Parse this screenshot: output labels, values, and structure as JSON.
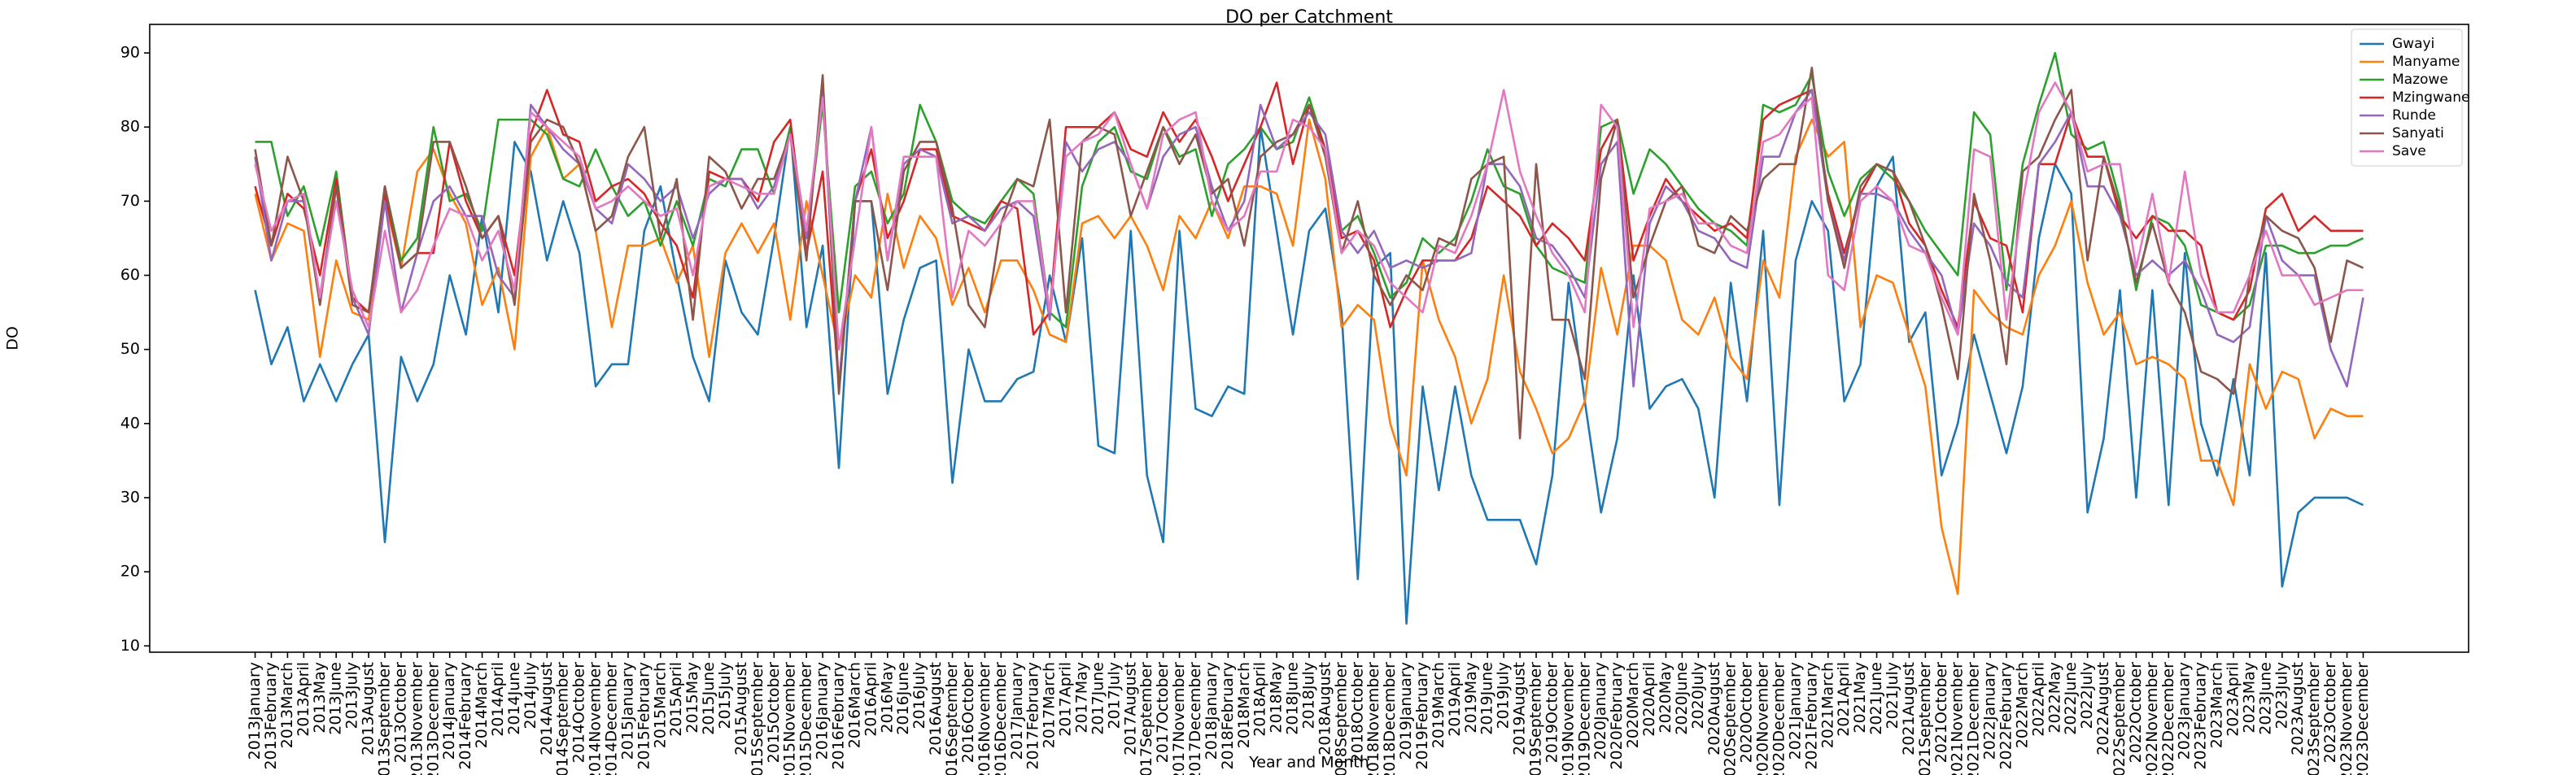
{
  "chart_data": {
    "type": "line",
    "title": "DO per Catchment",
    "x_label": "Year and Month",
    "y_label": "DO",
    "categories": [
      "2013January",
      "2013February",
      "2013March",
      "2013April",
      "2013May",
      "2013June",
      "2013July",
      "2013August",
      "2013September",
      "2013October",
      "2013November",
      "2013December",
      "2014January",
      "2014February",
      "2014March",
      "2014April",
      "2014June",
      "2014July",
      "2014August",
      "2014September",
      "2014October",
      "2014November",
      "2014December",
      "2015January",
      "2015February",
      "2015March",
      "2015April",
      "2015May",
      "2015June",
      "2015July",
      "2015August",
      "2015September",
      "2015October",
      "2015November",
      "2015December",
      "2016January",
      "2016February",
      "2016March",
      "2016April",
      "2016May",
      "2016June",
      "2016July",
      "2016August",
      "2016September",
      "2016October",
      "2016November",
      "2016December",
      "2017January",
      "2017February",
      "2017March",
      "2017April",
      "2017May",
      "2017June",
      "2017July",
      "2017August",
      "2017September",
      "2017October",
      "2017November",
      "2017December",
      "2018January",
      "2018February",
      "2018March",
      "2018April",
      "2018May",
      "2018June",
      "2018July",
      "2018August",
      "2018September",
      "2018October",
      "2018November",
      "2018December",
      "2019January",
      "2019February",
      "2019March",
      "2019April",
      "2019May",
      "2019June",
      "2019July",
      "2019August",
      "2019September",
      "2019October",
      "2019November",
      "2019December",
      "2020January",
      "2020February",
      "2020March",
      "2020April",
      "2020May",
      "2020June",
      "2020July",
      "2020August",
      "2020September",
      "2020October",
      "2020November",
      "2020December",
      "2021January",
      "2021February",
      "2021March",
      "2021April",
      "2021May",
      "2021June",
      "2021July",
      "2021August",
      "2021September",
      "2021October",
      "2021November",
      "2021December",
      "2022January",
      "2022February",
      "2022March",
      "2022April",
      "2022May",
      "2022June",
      "2022July",
      "2022August",
      "2022September",
      "2022October",
      "2022November",
      "2022December",
      "2023January",
      "2023February",
      "2023March",
      "2023April",
      "2023May",
      "2023June",
      "2023July",
      "2023August",
      "2023September",
      "2023October",
      "2023November",
      "2023December"
    ],
    "series": [
      {
        "name": "Gwayi",
        "color": "#1f77b4",
        "values": [
          58,
          48,
          53,
          43,
          48,
          43,
          48,
          52,
          24,
          49,
          43,
          48,
          60,
          52,
          68,
          55,
          78,
          74,
          62,
          70,
          63,
          45,
          48,
          48,
          66,
          72,
          60,
          49,
          43,
          62,
          55,
          52,
          65,
          80,
          53,
          64,
          34,
          70,
          70,
          44,
          54,
          61,
          62,
          32,
          50,
          43,
          43,
          46,
          47,
          60,
          51,
          65,
          37,
          36,
          66,
          33,
          24,
          66,
          42,
          41,
          45,
          44,
          80,
          66,
          52,
          66,
          69,
          55,
          19,
          61,
          63,
          13,
          45,
          31,
          45,
          33,
          27,
          27,
          27,
          21,
          33,
          59,
          43,
          28,
          38,
          60,
          42,
          45,
          46,
          42,
          30,
          59,
          43,
          66,
          29,
          62,
          70,
          66,
          43,
          48,
          72,
          76,
          51,
          55,
          33,
          40,
          52,
          44,
          36,
          45,
          65,
          75,
          71,
          28,
          38,
          58,
          30,
          58,
          29,
          63,
          40,
          33,
          46,
          33,
          63,
          18,
          28,
          30,
          30,
          30,
          29
        ]
      },
      {
        "name": "Manyame",
        "color": "#ff7f0e",
        "values": [
          71,
          62,
          67,
          66,
          49,
          62,
          55,
          54,
          70,
          61,
          74,
          77,
          71,
          67,
          56,
          61,
          50,
          76,
          80,
          73,
          75,
          66,
          53,
          64,
          64,
          65,
          59,
          64,
          49,
          63,
          67,
          63,
          67,
          54,
          70,
          60,
          50,
          60,
          57,
          71,
          61,
          68,
          65,
          56,
          61,
          55,
          62,
          62,
          58,
          52,
          51,
          67,
          68,
          65,
          68,
          64,
          58,
          68,
          65,
          70,
          65,
          72,
          72,
          71,
          64,
          81,
          73,
          53,
          56,
          54,
          40,
          33,
          62,
          54,
          49,
          40,
          46,
          60,
          47,
          42,
          36,
          38,
          43,
          61,
          52,
          64,
          64,
          62,
          54,
          52,
          57,
          49,
          46,
          62,
          57,
          76,
          81,
          76,
          78,
          53,
          60,
          59,
          52,
          45,
          26,
          17,
          58,
          55,
          53,
          52,
          60,
          64,
          70,
          59,
          52,
          55,
          48,
          49,
          48,
          46,
          35,
          35,
          29,
          48,
          42,
          47,
          46,
          38,
          42,
          41,
          41
        ]
      },
      {
        "name": "Mazowe",
        "color": "#2ca02c",
        "values": [
          78,
          78,
          68,
          72,
          64,
          74,
          57,
          55,
          72,
          62,
          65,
          80,
          70,
          71,
          66,
          81,
          81,
          81,
          79,
          73,
          72,
          77,
          72,
          68,
          70,
          64,
          70,
          64,
          73,
          72,
          77,
          77,
          71,
          80,
          65,
          83,
          55,
          72,
          74,
          67,
          71,
          83,
          78,
          70,
          68,
          67,
          70,
          73,
          71,
          55,
          53,
          72,
          78,
          80,
          74,
          73,
          80,
          76,
          77,
          68,
          75,
          77,
          80,
          77,
          78,
          84,
          77,
          66,
          68,
          63,
          57,
          59,
          65,
          63,
          65,
          70,
          77,
          72,
          71,
          64,
          61,
          60,
          59,
          80,
          81,
          71,
          77,
          75,
          72,
          69,
          67,
          66,
          64,
          83,
          82,
          83,
          87,
          74,
          68,
          73,
          75,
          73,
          70,
          66,
          63,
          60,
          82,
          79,
          58,
          75,
          83,
          90,
          79,
          77,
          78,
          70,
          58,
          68,
          67,
          64,
          56,
          55,
          54,
          56,
          64,
          64,
          63,
          63,
          64,
          64,
          65
        ]
      },
      {
        "name": "Mzingwane",
        "color": "#d62728",
        "values": [
          72,
          64,
          71,
          69,
          60,
          73,
          57,
          55,
          71,
          61,
          63,
          63,
          78,
          70,
          65,
          68,
          60,
          79,
          85,
          79,
          78,
          70,
          72,
          73,
          71,
          67,
          64,
          57,
          74,
          73,
          73,
          70,
          78,
          81,
          63,
          74,
          45,
          70,
          77,
          65,
          70,
          77,
          77,
          68,
          67,
          66,
          70,
          69,
          52,
          55,
          80,
          80,
          80,
          82,
          77,
          76,
          82,
          78,
          81,
          76,
          70,
          75,
          80,
          86,
          75,
          83,
          77,
          65,
          66,
          62,
          53,
          58,
          62,
          62,
          62,
          65,
          72,
          70,
          68,
          64,
          67,
          65,
          62,
          77,
          81,
          62,
          68,
          73,
          70,
          68,
          66,
          67,
          65,
          81,
          83,
          84,
          85,
          71,
          63,
          71,
          75,
          74,
          67,
          64,
          58,
          53,
          70,
          65,
          64,
          55,
          75,
          75,
          82,
          76,
          76,
          68,
          65,
          68,
          66,
          66,
          64,
          55,
          54,
          58,
          69,
          71,
          66,
          68,
          66,
          66,
          66
        ]
      },
      {
        "name": "Runde",
        "color": "#9467bd",
        "values": [
          76,
          62,
          70,
          70,
          57,
          72,
          57,
          52,
          70,
          55,
          63,
          70,
          72,
          68,
          68,
          60,
          57,
          83,
          80,
          77,
          75,
          69,
          67,
          75,
          73,
          70,
          72,
          65,
          71,
          73,
          73,
          69,
          72,
          79,
          65,
          85,
          45,
          70,
          80,
          62,
          75,
          77,
          76,
          67,
          68,
          66,
          69,
          70,
          68,
          54,
          78,
          74,
          77,
          78,
          75,
          69,
          76,
          79,
          80,
          72,
          66,
          70,
          83,
          77,
          79,
          82,
          79,
          66,
          63,
          66,
          61,
          62,
          61,
          62,
          62,
          63,
          75,
          75,
          72,
          65,
          64,
          61,
          57,
          75,
          78,
          45,
          67,
          72,
          70,
          66,
          65,
          62,
          61,
          76,
          76,
          82,
          85,
          70,
          62,
          71,
          71,
          70,
          66,
          63,
          60,
          52,
          67,
          64,
          59,
          57,
          75,
          78,
          82,
          72,
          72,
          68,
          60,
          62,
          60,
          62,
          58,
          52,
          51,
          53,
          68,
          62,
          60,
          60,
          50,
          45,
          57
        ]
      },
      {
        "name": "Sanyati",
        "color": "#8c564b",
        "values": [
          77,
          64,
          76,
          70,
          56,
          72,
          56,
          55,
          72,
          61,
          63,
          78,
          78,
          72,
          65,
          68,
          56,
          78,
          81,
          80,
          75,
          66,
          68,
          76,
          80,
          65,
          73,
          54,
          76,
          74,
          69,
          73,
          73,
          79,
          62,
          87,
          44,
          70,
          70,
          58,
          74,
          78,
          78,
          69,
          56,
          53,
          67,
          73,
          72,
          81,
          55,
          78,
          80,
          79,
          68,
          74,
          80,
          75,
          79,
          71,
          73,
          64,
          76,
          78,
          79,
          83,
          76,
          63,
          70,
          60,
          56,
          60,
          58,
          65,
          64,
          73,
          75,
          76,
          38,
          75,
          54,
          54,
          46,
          73,
          81,
          57,
          64,
          70,
          72,
          64,
          63,
          68,
          66,
          73,
          75,
          75,
          88,
          70,
          61,
          72,
          75,
          74,
          70,
          64,
          56,
          46,
          71,
          62,
          48,
          74,
          76,
          81,
          85,
          62,
          76,
          69,
          59,
          67,
          59,
          55,
          47,
          46,
          44,
          60,
          68,
          66,
          65,
          61,
          51,
          62,
          61
        ]
      },
      {
        "name": "Save",
        "color": "#e377c2",
        "values": [
          75,
          66,
          70,
          71,
          57,
          70,
          58,
          53,
          66,
          55,
          58,
          64,
          69,
          68,
          62,
          66,
          58,
          82,
          80,
          78,
          76,
          69,
          70,
          72,
          70,
          68,
          69,
          60,
          72,
          73,
          72,
          71,
          71,
          79,
          66,
          84,
          50,
          65,
          80,
          62,
          76,
          76,
          76,
          57,
          66,
          64,
          67,
          70,
          70,
          55,
          76,
          78,
          79,
          82,
          75,
          69,
          79,
          81,
          82,
          70,
          66,
          68,
          74,
          74,
          81,
          80,
          77,
          63,
          66,
          64,
          59,
          57,
          55,
          64,
          63,
          68,
          75,
          85,
          74,
          68,
          63,
          60,
          55,
          83,
          80,
          53,
          69,
          70,
          71,
          67,
          67,
          64,
          63,
          78,
          79,
          82,
          84,
          60,
          58,
          70,
          72,
          70,
          64,
          63,
          57,
          52,
          77,
          76,
          54,
          70,
          82,
          86,
          82,
          74,
          75,
          75,
          61,
          71,
          59,
          74,
          60,
          55,
          55,
          60,
          66,
          60,
          60,
          56,
          57,
          58,
          58
        ]
      }
    ],
    "ylim": [
      9.15,
      93.85
    ],
    "yticks": [
      10,
      20,
      30,
      40,
      50,
      60,
      70,
      80,
      90
    ],
    "grid": false,
    "legend": "upper right"
  }
}
